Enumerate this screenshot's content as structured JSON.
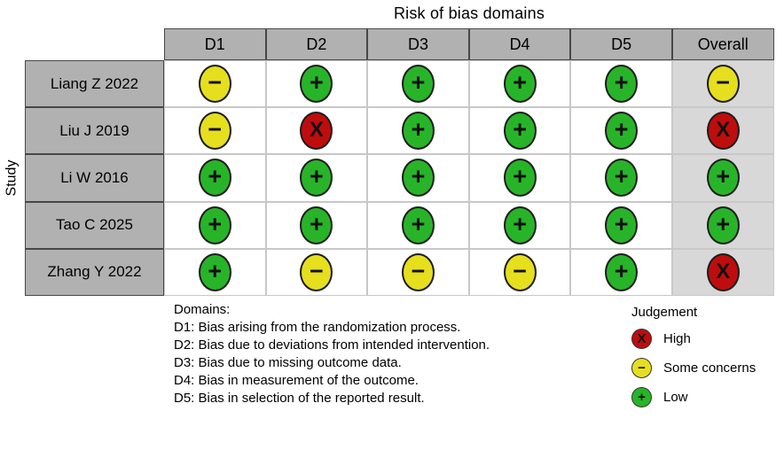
{
  "chart_data": {
    "type": "table",
    "title": "Risk of bias domains",
    "ylabel": "Study",
    "columns": [
      "D1",
      "D2",
      "D3",
      "D4",
      "D5",
      "Overall"
    ],
    "rows": [
      {
        "study": "Liang Z 2022",
        "judgements": [
          "Some concerns",
          "Low",
          "Low",
          "Low",
          "Low",
          "Some concerns"
        ]
      },
      {
        "study": "Liu J 2019",
        "judgements": [
          "Some concerns",
          "High",
          "Low",
          "Low",
          "Low",
          "High"
        ]
      },
      {
        "study": "Li W 2016",
        "judgements": [
          "Low",
          "Low",
          "Low",
          "Low",
          "Low",
          "Low"
        ]
      },
      {
        "study": "Tao C 2025",
        "judgements": [
          "Low",
          "Low",
          "Low",
          "Low",
          "Low",
          "Low"
        ]
      },
      {
        "study": "Zhang Y 2022",
        "judgements": [
          "Low",
          "Some concerns",
          "Some concerns",
          "Some concerns",
          "Low",
          "High"
        ]
      }
    ]
  },
  "domains_legend": {
    "heading": "Domains:",
    "items": [
      "D1: Bias arising from the randomization process.",
      "D2: Bias due to deviations from intended intervention.",
      "D3: Bias due to missing outcome data.",
      "D4: Bias in measurement of the outcome.",
      "D5: Bias in selection of the reported result."
    ]
  },
  "judgement_legend": {
    "heading": "Judgement",
    "items": [
      {
        "key": "high",
        "label": "High",
        "symbol": "X",
        "color": "#bf0d0d"
      },
      {
        "key": "some",
        "label": "Some concerns",
        "symbol": "−",
        "color": "#e6df1e"
      },
      {
        "key": "low",
        "label": "Low",
        "symbol": "+",
        "color": "#28b428"
      }
    ]
  },
  "colors": {
    "header_bg": "#b1b1b1",
    "header_border": "#474747",
    "grid_line": "#c8c8c8",
    "overall_column_bg": "#d8d8d8",
    "circle_outline": "#1c1c1c"
  }
}
